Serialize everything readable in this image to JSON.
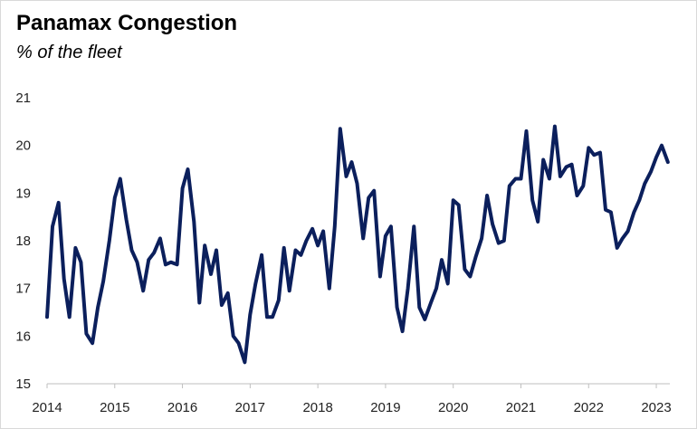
{
  "title": "Panamax Congestion",
  "subtitle": "% of the fleet",
  "chart_data": {
    "type": "line",
    "title": "Panamax Congestion",
    "subtitle": "% of the fleet",
    "xlabel": "",
    "ylabel": "",
    "xlim": [
      2014.0,
      2023.2
    ],
    "ylim": [
      15,
      21
    ],
    "grid": false,
    "line_color": "#0b1f5c",
    "x_ticks": [
      "2014",
      "2015",
      "2016",
      "2017",
      "2018",
      "2019",
      "2020",
      "2021",
      "2022",
      "2023"
    ],
    "y_ticks": [
      "15",
      "16",
      "17",
      "18",
      "19",
      "20",
      "21"
    ],
    "series": [
      {
        "x": [
          2014.0,
          2014.08,
          2014.17,
          2014.25,
          2014.33,
          2014.42,
          2014.5,
          2014.58,
          2014.67,
          2014.75,
          2014.83,
          2014.92,
          2015.0,
          2015.08,
          2015.17,
          2015.25,
          2015.33,
          2015.42,
          2015.5,
          2015.58,
          2015.67,
          2015.75,
          2015.83,
          2015.92,
          2016.0,
          2016.08,
          2016.17,
          2016.25,
          2016.33,
          2016.42,
          2016.5,
          2016.58,
          2016.67,
          2016.75,
          2016.83,
          2016.92,
          2017.0,
          2017.08,
          2017.17,
          2017.25,
          2017.33,
          2017.42,
          2017.5,
          2017.58,
          2017.67,
          2017.75,
          2017.83,
          2017.92,
          2018.0,
          2018.08,
          2018.17,
          2018.25,
          2018.33,
          2018.42,
          2018.5,
          2018.58,
          2018.67,
          2018.75,
          2018.83,
          2018.92,
          2019.0,
          2019.08,
          2019.17,
          2019.25,
          2019.33,
          2019.42,
          2019.5,
          2019.58,
          2019.67,
          2019.75,
          2019.83,
          2019.92,
          2020.0,
          2020.08,
          2020.17,
          2020.25,
          2020.33,
          2020.42,
          2020.5,
          2020.58,
          2020.67,
          2020.75,
          2020.83,
          2020.92,
          2021.0,
          2021.08,
          2021.17,
          2021.25,
          2021.33,
          2021.42,
          2021.5,
          2021.58,
          2021.67,
          2021.75,
          2021.83,
          2021.92,
          2022.0,
          2022.08,
          2022.17,
          2022.25,
          2022.33,
          2022.42,
          2022.5,
          2022.58,
          2022.67,
          2022.75,
          2022.83,
          2022.92,
          2023.0,
          2023.08,
          2023.17
        ],
        "values": [
          16.4,
          18.3,
          18.8,
          17.2,
          16.4,
          17.85,
          17.55,
          16.05,
          15.85,
          16.6,
          17.15,
          18.0,
          18.9,
          19.3,
          18.45,
          17.8,
          17.55,
          16.95,
          17.6,
          17.75,
          18.05,
          17.5,
          17.55,
          17.5,
          19.1,
          19.5,
          18.4,
          16.7,
          17.9,
          17.3,
          17.8,
          16.65,
          16.9,
          16.0,
          15.85,
          15.45,
          16.45,
          17.1,
          17.7,
          16.4,
          16.4,
          16.75,
          17.85,
          16.95,
          17.8,
          17.7,
          18.0,
          18.25,
          17.9,
          18.2,
          17.0,
          18.3,
          20.35,
          19.35,
          19.65,
          19.2,
          18.05,
          18.9,
          19.05,
          17.25,
          18.1,
          18.3,
          16.6,
          16.1,
          17.0,
          18.3,
          16.6,
          16.35,
          16.7,
          17.0,
          17.6,
          17.1,
          18.85,
          18.75,
          17.4,
          17.25,
          17.65,
          18.05,
          18.95,
          18.35,
          17.95,
          18.0,
          19.15,
          19.3,
          19.3,
          20.3,
          18.85,
          18.4,
          19.7,
          19.3,
          20.4,
          19.35,
          19.55,
          19.6,
          18.95,
          19.15,
          19.95,
          19.8,
          19.85,
          18.65,
          18.6,
          17.85,
          18.05,
          18.2,
          18.6,
          18.85,
          19.2,
          19.45,
          19.75,
          20.0,
          19.65
        ]
      }
    ]
  }
}
